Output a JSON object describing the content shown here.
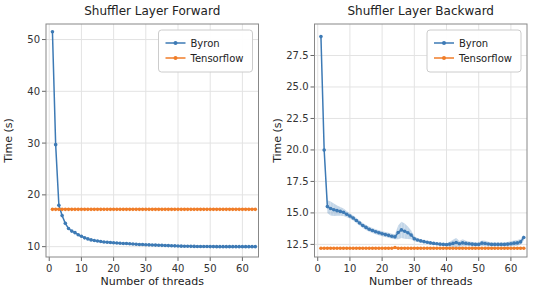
{
  "chart_data": [
    {
      "type": "line",
      "title": "Shuffler Layer Forward",
      "x_label": "Number of threads",
      "y_label": "Time (s)",
      "x": [
        1,
        2,
        3,
        4,
        5,
        6,
        7,
        8,
        9,
        10,
        11,
        12,
        13,
        14,
        15,
        16,
        17,
        18,
        19,
        20,
        21,
        22,
        23,
        24,
        25,
        26,
        27,
        28,
        29,
        30,
        31,
        32,
        33,
        34,
        35,
        36,
        37,
        38,
        39,
        40,
        41,
        42,
        43,
        44,
        45,
        46,
        47,
        48,
        49,
        50,
        51,
        52,
        53,
        54,
        55,
        56,
        57,
        58,
        59,
        60,
        61,
        62,
        63,
        64
      ],
      "series": [
        {
          "name": "Byron",
          "color": "#3d7ab5",
          "marker": "circle",
          "values": [
            51.5,
            29.7,
            18.0,
            16.0,
            14.5,
            13.5,
            13.0,
            12.7,
            12.3,
            12.0,
            11.7,
            11.5,
            11.3,
            11.2,
            11.1,
            11.0,
            10.9,
            10.85,
            10.8,
            10.75,
            10.7,
            10.65,
            10.62,
            10.6,
            10.55,
            10.5,
            10.45,
            10.42,
            10.4,
            10.38,
            10.35,
            10.32,
            10.3,
            10.28,
            10.25,
            10.22,
            10.2,
            10.18,
            10.15,
            10.12,
            10.1,
            10.08,
            10.07,
            10.06,
            10.05,
            10.04,
            10.03,
            10.03,
            10.02,
            10.01,
            10.01,
            10.0,
            10.0,
            10.0,
            10.0,
            10.0,
            10.0,
            10.0,
            10.0,
            10.0,
            10.0,
            10.0,
            10.0,
            10.0
          ],
          "std": [
            0.3,
            0.2,
            0.15,
            0.15,
            0.1,
            0.1,
            0.1,
            0.1,
            0.1,
            0.1,
            0.1,
            0.1,
            0.1,
            0.1,
            0.1,
            0.1,
            0.1,
            0.1,
            0.1,
            0.1,
            0.1,
            0.1,
            0.1,
            0.1,
            0.1,
            0.1,
            0.1,
            0.1,
            0.1,
            0.1,
            0.1,
            0.1,
            0.1,
            0.1,
            0.1,
            0.1,
            0.1,
            0.1,
            0.1,
            0.1,
            0.1,
            0.1,
            0.1,
            0.1,
            0.1,
            0.1,
            0.1,
            0.1,
            0.1,
            0.1,
            0.1,
            0.1,
            0.1,
            0.1,
            0.1,
            0.1,
            0.1,
            0.1,
            0.1,
            0.1,
            0.1,
            0.1,
            0.1,
            0.1
          ]
        },
        {
          "name": "Tensorflow",
          "color": "#f07d28",
          "marker": "circle",
          "values": [
            17.2,
            17.2,
            17.2,
            17.2,
            17.2,
            17.2,
            17.2,
            17.2,
            17.2,
            17.2,
            17.2,
            17.2,
            17.2,
            17.2,
            17.2,
            17.2,
            17.2,
            17.2,
            17.2,
            17.2,
            17.2,
            17.2,
            17.2,
            17.2,
            17.2,
            17.2,
            17.2,
            17.2,
            17.2,
            17.2,
            17.2,
            17.2,
            17.2,
            17.2,
            17.2,
            17.2,
            17.2,
            17.2,
            17.2,
            17.2,
            17.2,
            17.2,
            17.2,
            17.2,
            17.2,
            17.2,
            17.2,
            17.2,
            17.2,
            17.2,
            17.2,
            17.2,
            17.2,
            17.2,
            17.2,
            17.2,
            17.2,
            17.2,
            17.2,
            17.2,
            17.2,
            17.2,
            17.2,
            17.2
          ]
        }
      ],
      "xlim": [
        -1,
        65
      ],
      "xticks": [
        0,
        10,
        20,
        30,
        40,
        50,
        60
      ],
      "ylim": [
        8,
        53
      ],
      "yticks": [
        10,
        20,
        30,
        40,
        50
      ],
      "grid": true,
      "legend": "upper right"
    },
    {
      "type": "line",
      "title": "Shuffler Layer Backward",
      "x_label": "Number of threads",
      "y_label": "Time (s)",
      "x": [
        1,
        2,
        3,
        4,
        5,
        6,
        7,
        8,
        9,
        10,
        11,
        12,
        13,
        14,
        15,
        16,
        17,
        18,
        19,
        20,
        21,
        22,
        23,
        24,
        25,
        26,
        27,
        28,
        29,
        30,
        31,
        32,
        33,
        34,
        35,
        36,
        37,
        38,
        39,
        40,
        41,
        42,
        43,
        44,
        45,
        46,
        47,
        48,
        49,
        50,
        51,
        52,
        53,
        54,
        55,
        56,
        57,
        58,
        59,
        60,
        61,
        62,
        63,
        64
      ],
      "series": [
        {
          "name": "Byron",
          "color": "#3d7ab5",
          "marker": "circle",
          "values": [
            29.0,
            20.0,
            15.5,
            15.35,
            15.25,
            15.18,
            15.12,
            15.05,
            14.9,
            14.75,
            14.6,
            14.4,
            14.2,
            14.0,
            13.85,
            13.7,
            13.6,
            13.5,
            13.42,
            13.35,
            13.28,
            13.22,
            13.15,
            13.1,
            13.45,
            13.65,
            13.55,
            13.42,
            13.25,
            12.95,
            12.85,
            12.78,
            12.72,
            12.67,
            12.62,
            12.58,
            12.55,
            12.52,
            12.5,
            12.48,
            12.52,
            12.58,
            12.65,
            12.55,
            12.62,
            12.58,
            12.55,
            12.52,
            12.5,
            12.5,
            12.6,
            12.57,
            12.53,
            12.5,
            12.5,
            12.5,
            12.5,
            12.5,
            12.52,
            12.55,
            12.6,
            12.62,
            12.7,
            13.05
          ],
          "std": [
            0.3,
            0.2,
            0.5,
            0.55,
            0.5,
            0.4,
            0.35,
            0.3,
            0.25,
            0.2,
            0.2,
            0.2,
            0.2,
            0.2,
            0.2,
            0.2,
            0.2,
            0.2,
            0.2,
            0.2,
            0.2,
            0.2,
            0.2,
            0.2,
            0.55,
            0.65,
            0.6,
            0.5,
            0.35,
            0.2,
            0.15,
            0.12,
            0.1,
            0.1,
            0.1,
            0.1,
            0.1,
            0.1,
            0.1,
            0.1,
            0.2,
            0.28,
            0.35,
            0.22,
            0.28,
            0.22,
            0.18,
            0.18,
            0.15,
            0.15,
            0.22,
            0.22,
            0.18,
            0.15,
            0.15,
            0.15,
            0.15,
            0.15,
            0.18,
            0.2,
            0.22,
            0.22,
            0.22,
            0.22
          ]
        },
        {
          "name": "Tensorflow",
          "color": "#f07d28",
          "marker": "circle",
          "values": [
            12.2,
            12.2,
            12.2,
            12.2,
            12.2,
            12.2,
            12.2,
            12.2,
            12.2,
            12.2,
            12.2,
            12.2,
            12.2,
            12.2,
            12.2,
            12.2,
            12.2,
            12.2,
            12.2,
            12.2,
            12.2,
            12.2,
            12.2,
            12.25,
            12.2,
            12.2,
            12.2,
            12.2,
            12.2,
            12.2,
            12.2,
            12.2,
            12.2,
            12.2,
            12.2,
            12.2,
            12.2,
            12.2,
            12.2,
            12.2,
            12.2,
            12.2,
            12.2,
            12.2,
            12.2,
            12.2,
            12.2,
            12.2,
            12.2,
            12.2,
            12.2,
            12.2,
            12.2,
            12.2,
            12.2,
            12.2,
            12.2,
            12.2,
            12.2,
            12.2,
            12.2,
            12.2,
            12.2,
            12.2
          ]
        }
      ],
      "xlim": [
        -1,
        65
      ],
      "xticks": [
        0,
        10,
        20,
        30,
        40,
        50,
        60
      ],
      "ylim": [
        11.5,
        30
      ],
      "yticks": [
        12.5,
        {
          "value": 15,
          "label": "15.0"
        },
        17.5,
        {
          "value": 20,
          "label": "20.0"
        },
        22.5,
        {
          "value": 25,
          "label": "25.0"
        },
        27.5
      ],
      "grid": true,
      "legend": "upper right"
    }
  ]
}
